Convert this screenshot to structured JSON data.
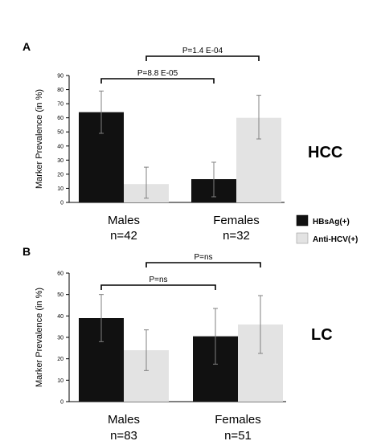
{
  "colors": {
    "series_dark": "#111111",
    "series_light": "#e3e3e3",
    "error_bar": "#808080",
    "axis": "#000000",
    "annotation": "#000000"
  },
  "legend": {
    "items": [
      {
        "label": "HBsAg(+)",
        "color": "#111111"
      },
      {
        "label": "Anti-HCV(+)",
        "color": "#e3e3e3"
      }
    ]
  },
  "chart_data": [
    {
      "panel_label": "A",
      "side_label": "HCC",
      "type": "bar",
      "ylabel": "Marker Prevalence (in %)",
      "ylim": [
        0,
        90
      ],
      "yticks": [
        0,
        10,
        20,
        30,
        40,
        50,
        60,
        70,
        80,
        90
      ],
      "groups": [
        {
          "name": "Males",
          "n_label": "n=42"
        },
        {
          "name": "Females",
          "n_label": "n=32"
        }
      ],
      "series": [
        {
          "name": "HBsAg(+)",
          "values": [
            64,
            16.5
          ],
          "err_low": [
            49,
            4
          ],
          "err_high": [
            79,
            28.5
          ]
        },
        {
          "name": "Anti-HCV(+)",
          "values": [
            13,
            60
          ],
          "err_low": [
            3,
            45
          ],
          "err_high": [
            25,
            76
          ]
        }
      ],
      "comparisons": [
        {
          "label": "P=8.8 E-05",
          "from_group": 0,
          "from_series": 0,
          "to_group": 1,
          "to_series": 0,
          "level": 1
        },
        {
          "label": "P=1.4 E-04",
          "from_group": 0,
          "from_series": 1,
          "to_group": 1,
          "to_series": 1,
          "level": 2
        }
      ]
    },
    {
      "panel_label": "B",
      "side_label": "LC",
      "type": "bar",
      "ylabel": "Marker Prevalence (in %)",
      "ylim": [
        0,
        60
      ],
      "yticks": [
        0,
        10,
        20,
        30,
        40,
        50,
        60
      ],
      "groups": [
        {
          "name": "Males",
          "n_label": "n=83"
        },
        {
          "name": "Females",
          "n_label": "n=51"
        }
      ],
      "series": [
        {
          "name": "HBsAg(+)",
          "values": [
            39,
            30.5
          ],
          "err_low": [
            28,
            17.5
          ],
          "err_high": [
            50,
            43.5
          ]
        },
        {
          "name": "Anti-HCV(+)",
          "values": [
            24,
            36
          ],
          "err_low": [
            14.5,
            22.5
          ],
          "err_high": [
            33.5,
            49.5
          ]
        }
      ],
      "comparisons": [
        {
          "label": "P=ns",
          "from_group": 0,
          "from_series": 0,
          "to_group": 1,
          "to_series": 0,
          "level": 1
        },
        {
          "label": "P=ns",
          "from_group": 0,
          "from_series": 1,
          "to_group": 1,
          "to_series": 1,
          "level": 2
        }
      ]
    }
  ]
}
